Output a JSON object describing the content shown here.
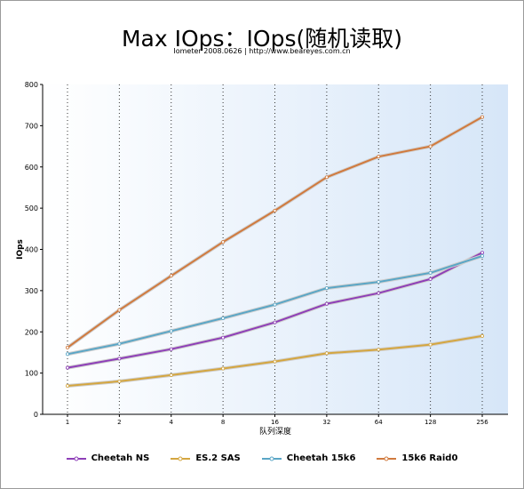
{
  "chart_data": {
    "type": "line",
    "title": "Max IOps：IOps(随机读取)",
    "subtitle": "Iometer 2008.0626 | http://www.beareyes.com.cn",
    "xlabel": "队列深度",
    "ylabel": "IOps",
    "categories": [
      "1",
      "2",
      "4",
      "8",
      "16",
      "32",
      "64",
      "128",
      "256"
    ],
    "ylim": [
      0,
      800
    ],
    "yticks": [
      0,
      100,
      200,
      300,
      400,
      500,
      600,
      700,
      800
    ],
    "grid": "vertical dotted",
    "legend_position": "bottom",
    "series": [
      {
        "name": "Cheetah NS",
        "color": "#8e3fb8",
        "values": [
          113,
          135,
          158,
          186,
          223,
          268,
          294,
          328,
          392
        ]
      },
      {
        "name": "ES.2 SAS",
        "color": "#d4a640",
        "values": [
          69,
          80,
          95,
          111,
          128,
          148,
          157,
          169,
          190
        ]
      },
      {
        "name": "Cheetah 15k6",
        "color": "#5aa6c6",
        "values": [
          146,
          171,
          202,
          233,
          266,
          306,
          321,
          343,
          384
        ]
      },
      {
        "name": "15k6 Raid0",
        "color": "#d07a3e",
        "values": [
          162,
          253,
          336,
          418,
          494,
          575,
          625,
          650,
          721
        ]
      }
    ]
  }
}
